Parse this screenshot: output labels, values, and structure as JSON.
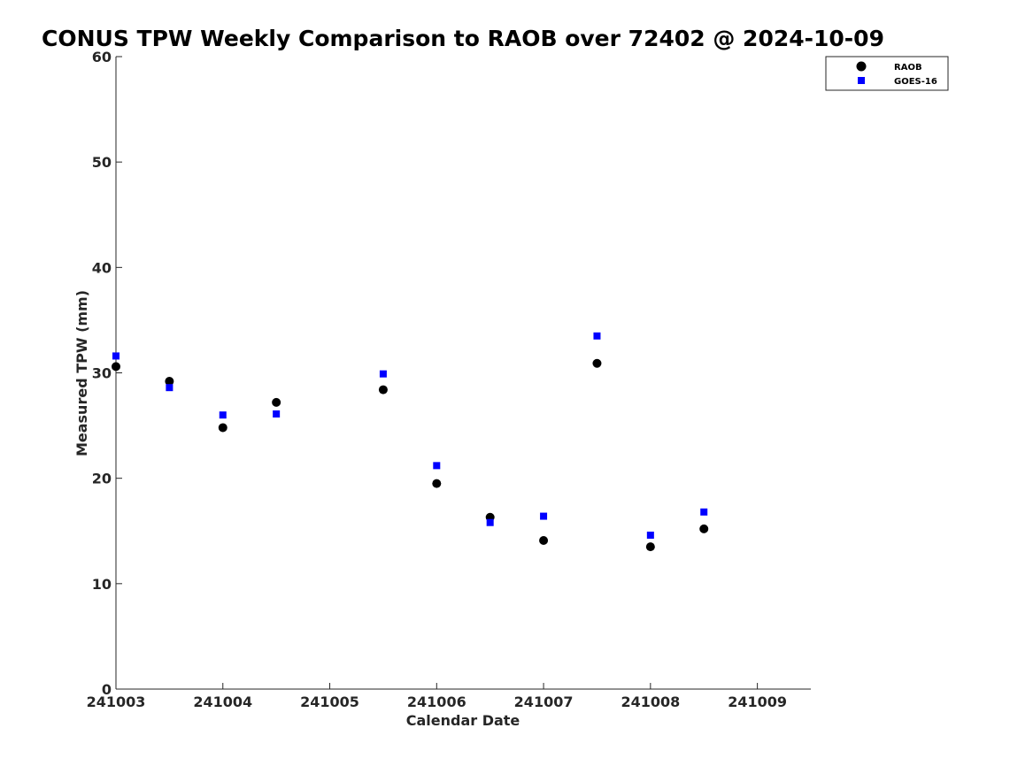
{
  "chart_data": {
    "type": "scatter",
    "title": "CONUS TPW Weekly Comparison to RAOB over 72402 @ 2024-10-09",
    "xlabel": "Calendar Date",
    "ylabel": "Measured TPW (mm)",
    "xlim": [
      "2024-10-03 00:00",
      "2024-10-09 12:00"
    ],
    "ylim": [
      0,
      60
    ],
    "x_ticks": [
      "241003",
      "241004",
      "241005",
      "241006",
      "241007",
      "241008",
      "241009"
    ],
    "y_ticks": [
      "0",
      "10",
      "20",
      "30",
      "40",
      "50",
      "60"
    ],
    "grid": false,
    "legend_position": "top-right",
    "series": [
      {
        "name": "RAOB",
        "marker": "circle",
        "color": "#000000",
        "points": [
          {
            "x": "2024-10-03 00:00",
            "y": 30.6
          },
          {
            "x": "2024-10-03 12:00",
            "y": 29.2
          },
          {
            "x": "2024-10-04 00:00",
            "y": 24.8
          },
          {
            "x": "2024-10-04 12:00",
            "y": 27.2
          },
          {
            "x": "2024-10-05 12:00",
            "y": 28.4
          },
          {
            "x": "2024-10-06 00:00",
            "y": 19.5
          },
          {
            "x": "2024-10-06 12:00",
            "y": 16.3
          },
          {
            "x": "2024-10-07 00:00",
            "y": 14.1
          },
          {
            "x": "2024-10-07 12:00",
            "y": 30.9
          },
          {
            "x": "2024-10-08 00:00",
            "y": 13.5
          },
          {
            "x": "2024-10-08 12:00",
            "y": 15.2
          }
        ]
      },
      {
        "name": "GOES-16",
        "marker": "square",
        "color": "#0000ff",
        "points": [
          {
            "x": "2024-10-03 00:00",
            "y": 31.6
          },
          {
            "x": "2024-10-03 12:00",
            "y": 28.6
          },
          {
            "x": "2024-10-04 00:00",
            "y": 26.0
          },
          {
            "x": "2024-10-04 12:00",
            "y": 26.1
          },
          {
            "x": "2024-10-05 12:00",
            "y": 29.9
          },
          {
            "x": "2024-10-06 00:00",
            "y": 21.2
          },
          {
            "x": "2024-10-06 12:00",
            "y": 15.8
          },
          {
            "x": "2024-10-07 00:00",
            "y": 16.4
          },
          {
            "x": "2024-10-07 12:00",
            "y": 33.5
          },
          {
            "x": "2024-10-08 00:00",
            "y": 14.6
          },
          {
            "x": "2024-10-08 12:00",
            "y": 16.8
          }
        ]
      }
    ]
  }
}
